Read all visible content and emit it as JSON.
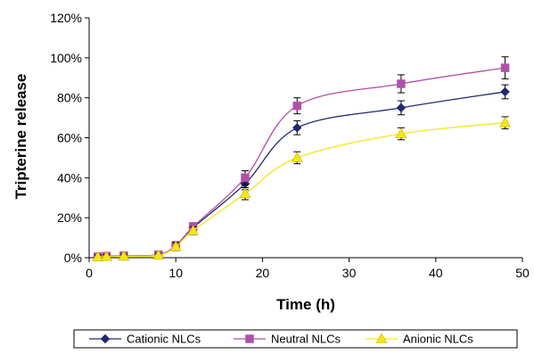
{
  "chart_data": {
    "type": "line",
    "title": "",
    "xlabel": "Time (h)",
    "ylabel": "Tripterine release",
    "xlim": [
      0,
      50
    ],
    "ylim": [
      0,
      120
    ],
    "x_ticks": [
      0,
      10,
      20,
      30,
      40,
      50
    ],
    "y_ticks": [
      0,
      20,
      40,
      60,
      80,
      100,
      120
    ],
    "y_tick_format": "percent",
    "grid": false,
    "legend_position": "bottom",
    "series": [
      {
        "name": "Cationic NLCs",
        "color": "#1f2a6e",
        "marker": "diamond",
        "x": [
          1,
          2,
          4,
          8,
          10,
          12,
          18,
          24,
          36,
          48
        ],
        "y": [
          0.5,
          0.6,
          0.8,
          1.5,
          6,
          15,
          37,
          65,
          75,
          83
        ],
        "error": [
          1,
          1,
          1,
          1,
          2,
          2,
          3,
          3.5,
          3.5,
          3.5
        ]
      },
      {
        "name": "Neutral NLCs",
        "color": "#b34fa8",
        "marker": "square",
        "x": [
          1,
          2,
          4,
          8,
          10,
          12,
          18,
          24,
          36,
          48
        ],
        "y": [
          0.5,
          0.8,
          1,
          1.5,
          6,
          15.5,
          40,
          76,
          87,
          95
        ],
        "error": [
          1,
          1,
          1,
          1,
          2,
          2,
          3.5,
          4,
          4.5,
          5.5
        ]
      },
      {
        "name": "Anionic NLCs",
        "color": "#f5e61a",
        "marker": "triangle",
        "x": [
          1,
          2,
          4,
          8,
          10,
          12,
          18,
          24,
          36,
          48
        ],
        "y": [
          0.3,
          0.5,
          0.7,
          1.2,
          5.5,
          13.5,
          32,
          50,
          62,
          67.5
        ],
        "error": [
          1,
          1,
          1,
          1,
          2,
          2,
          3,
          3,
          3,
          3
        ]
      }
    ]
  }
}
